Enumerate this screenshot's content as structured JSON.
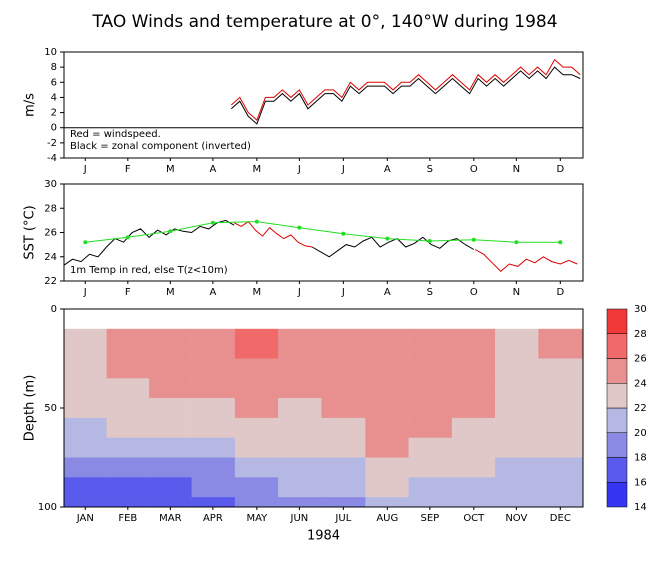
{
  "chart_data": [
    {
      "type": "line",
      "title": "TAO Winds and temperature at 0°, 140°W during 1984",
      "ylabel": "m/s",
      "annotations": [
        "Red = windspeed.",
        "Black = zonal component (inverted)"
      ],
      "xlim": [
        0,
        366
      ],
      "ylim": [
        -4,
        10
      ],
      "yticks": [
        -4,
        -2,
        0,
        2,
        4,
        6,
        8,
        10
      ],
      "zero_line": true,
      "xticks": [
        {
          "value": 15,
          "label": "J"
        },
        {
          "value": 45,
          "label": "F"
        },
        {
          "value": 75,
          "label": "M"
        },
        {
          "value": 105,
          "label": "A"
        },
        {
          "value": 136,
          "label": "M"
        },
        {
          "value": 166,
          "label": "J"
        },
        {
          "value": 197,
          "label": "J"
        },
        {
          "value": 228,
          "label": "A"
        },
        {
          "value": 258,
          "label": "S"
        },
        {
          "value": 289,
          "label": "O"
        },
        {
          "value": 319,
          "label": "N"
        },
        {
          "value": 350,
          "label": "D"
        }
      ],
      "series": [
        {
          "color": "#000000",
          "x": [
            118,
            124,
            130,
            136,
            142,
            148,
            154,
            160,
            166,
            172,
            178,
            184,
            190,
            196,
            202,
            208,
            214,
            220,
            226,
            232,
            238,
            244,
            250,
            256,
            262,
            268,
            274,
            280,
            286,
            292,
            298,
            304,
            310,
            316,
            322,
            328,
            334,
            340,
            346,
            352,
            358,
            364
          ],
          "values": [
            2.5,
            3.5,
            1.5,
            0.5,
            3.5,
            3.5,
            4.5,
            3.5,
            4.5,
            2.5,
            3.5,
            4.5,
            4.5,
            3.5,
            5.5,
            4.5,
            5.5,
            5.5,
            5.5,
            4.5,
            5.5,
            5.5,
            6.5,
            5.5,
            4.5,
            5.5,
            6.5,
            5.5,
            4.5,
            6.5,
            5.5,
            6.5,
            5.5,
            6.5,
            7.5,
            6.5,
            7.5,
            6.5,
            8,
            7,
            7,
            6.5
          ]
        },
        {
          "color": "#dd0000",
          "x": [
            118,
            124,
            130,
            136,
            142,
            148,
            154,
            160,
            166,
            172,
            178,
            184,
            190,
            196,
            202,
            208,
            214,
            220,
            226,
            232,
            238,
            244,
            250,
            256,
            262,
            268,
            274,
            280,
            286,
            292,
            298,
            304,
            310,
            316,
            322,
            328,
            334,
            340,
            346,
            352,
            358,
            364
          ],
          "values": [
            3,
            4,
            2,
            1,
            4,
            4,
            5,
            4,
            5,
            3,
            4,
            5,
            5,
            4,
            6,
            5,
            6,
            6,
            6,
            5,
            6,
            6,
            7,
            6,
            5,
            6,
            7,
            6,
            5,
            7,
            6,
            7,
            6,
            7,
            8,
            7,
            8,
            7,
            9,
            8,
            8,
            7
          ]
        }
      ]
    },
    {
      "type": "line",
      "ylabel": "SST (°C)",
      "annotations": [
        "1m Temp in red, else T(z<10m)"
      ],
      "xlim": [
        0,
        366
      ],
      "ylim": [
        22,
        30
      ],
      "yticks": [
        22,
        24,
        26,
        28,
        30
      ],
      "xticks": [
        {
          "value": 15,
          "label": "J"
        },
        {
          "value": 45,
          "label": "F"
        },
        {
          "value": 75,
          "label": "M"
        },
        {
          "value": 105,
          "label": "A"
        },
        {
          "value": 136,
          "label": "M"
        },
        {
          "value": 166,
          "label": "J"
        },
        {
          "value": 197,
          "label": "J"
        },
        {
          "value": 228,
          "label": "A"
        },
        {
          "value": 258,
          "label": "S"
        },
        {
          "value": 289,
          "label": "O"
        },
        {
          "value": 319,
          "label": "N"
        },
        {
          "value": 350,
          "label": "D"
        }
      ],
      "series": [
        {
          "color": "#000000",
          "x": [
            0,
            6,
            12,
            18,
            24,
            30,
            36,
            42,
            48,
            54,
            60,
            66,
            72,
            78,
            84,
            90,
            96,
            102,
            108,
            114,
            120,
            148,
            175,
            181,
            187,
            193,
            199,
            205,
            211,
            217,
            223,
            229,
            235,
            241,
            247,
            253,
            259,
            265,
            271,
            277,
            283,
            289
          ],
          "values": [
            23.3,
            23.8,
            23.6,
            24.2,
            24,
            24.8,
            25.5,
            25.2,
            26,
            26.3,
            25.6,
            26.2,
            25.8,
            26.3,
            26.1,
            26,
            26.5,
            26.3,
            26.8,
            27,
            26.6,
            null,
            24.8,
            24.4,
            24,
            24.5,
            25,
            24.8,
            25.3,
            25.6,
            24.8,
            25.2,
            25.5,
            24.8,
            25.1,
            25.6,
            25,
            24.7,
            25.3,
            25.5,
            25,
            24.6
          ]
        },
        {
          "color": "#dd0000",
          "x": [
            120,
            125,
            130,
            135,
            140,
            145,
            150,
            155,
            160,
            165,
            170,
            175,
            230,
            290,
            296,
            302,
            308,
            314,
            320,
            326,
            332,
            338,
            344,
            350,
            356,
            362
          ],
          "values": [
            26.8,
            26.5,
            26.9,
            26.2,
            25.7,
            26.4,
            25.9,
            25.5,
            25.8,
            25.2,
            24.9,
            24.8,
            null,
            24.6,
            24.2,
            23.5,
            22.8,
            23.4,
            23.2,
            23.8,
            23.5,
            24,
            23.6,
            23.4,
            23.7,
            23.4
          ]
        },
        {
          "color": "#22dd22",
          "markers": true,
          "x": [
            15,
            45,
            75,
            105,
            136,
            166,
            197,
            228,
            258,
            289,
            319,
            350
          ],
          "values": [
            25.2,
            25.6,
            26.1,
            26.8,
            26.9,
            26.4,
            25.9,
            25.5,
            25.3,
            25.4,
            25.2,
            25.2
          ]
        }
      ]
    },
    {
      "type": "contour",
      "ylabel": "Depth (m)",
      "xlabel": "1984",
      "xlim": [
        0,
        366
      ],
      "ylim": [
        0,
        100
      ],
      "y_inverted": true,
      "yticks": [
        0,
        50,
        100
      ],
      "xticks": [
        {
          "value": 15,
          "label": "JAN"
        },
        {
          "value": 45,
          "label": "FEB"
        },
        {
          "value": 75,
          "label": "MAR"
        },
        {
          "value": 105,
          "label": "APR"
        },
        {
          "value": 136,
          "label": "MAY"
        },
        {
          "value": 166,
          "label": "JUN"
        },
        {
          "value": 197,
          "label": "JUL"
        },
        {
          "value": 228,
          "label": "AUG"
        },
        {
          "value": 258,
          "label": "SEP"
        },
        {
          "value": 289,
          "label": "OCT"
        },
        {
          "value": 319,
          "label": "NOV"
        },
        {
          "value": 350,
          "label": "DEC"
        }
      ],
      "x": [
        15,
        45,
        75,
        105,
        136,
        166,
        197,
        228,
        258,
        289,
        319,
        350
      ],
      "depths": [
        10,
        20,
        30,
        40,
        50,
        60,
        70,
        80,
        90,
        100
      ],
      "values": [
        [
          23,
          24.5,
          25,
          25.5,
          26.5,
          25,
          24.5,
          24.5,
          24.5,
          24.5,
          23,
          24.5
        ],
        [
          23,
          24.5,
          25,
          25,
          26,
          25,
          24.5,
          24.5,
          24.5,
          24.5,
          23,
          24
        ],
        [
          23,
          24,
          24.5,
          24.5,
          25.5,
          24.5,
          24.5,
          24.5,
          24.5,
          24,
          23,
          23.5
        ],
        [
          22.5,
          23,
          24,
          24,
          25,
          24,
          24.5,
          24.5,
          24.5,
          24,
          23,
          23
        ],
        [
          22,
          22.5,
          23,
          23,
          24,
          23.5,
          24,
          24.5,
          24.5,
          24,
          22.5,
          23
        ],
        [
          21,
          22,
          22,
          22,
          23,
          22.5,
          23,
          24.5,
          24,
          23.5,
          22,
          22.5
        ],
        [
          20,
          21,
          21,
          21,
          22,
          22,
          22,
          24,
          23.5,
          23,
          22,
          22
        ],
        [
          18,
          19,
          19,
          19.5,
          21,
          21,
          21,
          23,
          23,
          22.5,
          21.5,
          21.5
        ],
        [
          17,
          17,
          17,
          18,
          19,
          20,
          20,
          22,
          21.5,
          21,
          20.5,
          21
        ],
        [
          16,
          16,
          16,
          17,
          18,
          19,
          19,
          21,
          21,
          20,
          20,
          20.5
        ]
      ],
      "levels": [
        14,
        16,
        18,
        20,
        22,
        24,
        26,
        28,
        30
      ],
      "level_colors": [
        "#3636f2",
        "#5a5aec",
        "#8a8ae4",
        "#b4b8e2",
        "#e0c8c8",
        "#e89090",
        "#f06a6a",
        "#f03a3a"
      ]
    }
  ]
}
